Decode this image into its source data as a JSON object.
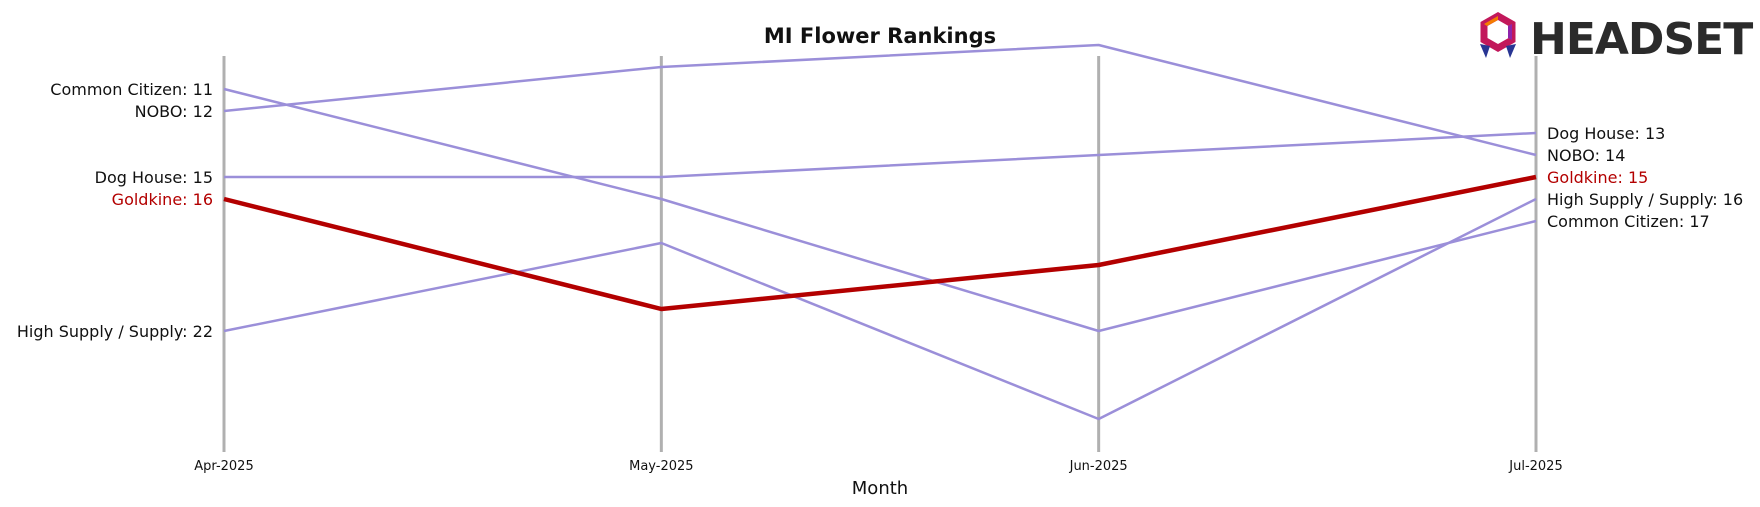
{
  "brand": {
    "logo_text": "HEADSET",
    "logo_colors": [
      "#c2185b",
      "#8e24aa",
      "#f57c00",
      "#283593"
    ]
  },
  "chart_data": {
    "type": "line",
    "title": "MI Flower Rankings",
    "xlabel": "Month",
    "ylabel": "",
    "categories": [
      "Apr-2025",
      "May-2025",
      "Jun-2025",
      "Jul-2025"
    ],
    "y_inverted": true,
    "ylim": [
      9.5,
      27.5
    ],
    "grid": "vertical lines at each month",
    "colors": {
      "highlight": "#b30000",
      "other": "#9b8fd9",
      "gridline": "#b0b0b0"
    },
    "series": [
      {
        "name": "Common Citizen",
        "values": [
          11,
          16,
          22,
          17
        ],
        "highlight": false
      },
      {
        "name": "NOBO",
        "values": [
          12,
          10,
          9,
          14
        ],
        "highlight": false
      },
      {
        "name": "Dog House",
        "values": [
          15,
          15,
          14,
          13
        ],
        "highlight": false
      },
      {
        "name": "High Supply / Supply",
        "values": [
          22,
          18,
          26,
          16
        ],
        "highlight": false
      },
      {
        "name": "Goldkine",
        "values": [
          16,
          21,
          19,
          15
        ],
        "highlight": true
      }
    ]
  }
}
